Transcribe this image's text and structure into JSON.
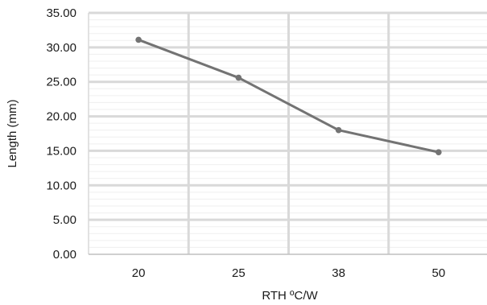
{
  "chart_data": {
    "type": "line",
    "categories": [
      "20",
      "25",
      "38",
      "50"
    ],
    "series": [
      {
        "values": [
          31.1,
          25.6,
          18.0,
          14.8
        ]
      }
    ],
    "xlabel": "RTH ºC/W",
    "ylabel": "Length (mm)",
    "ylim": [
      0,
      35
    ],
    "ytick_step": 5,
    "ytick_labels": [
      "0.00",
      "5.00",
      "10.00",
      "15.00",
      "20.00",
      "25.00",
      "30.00",
      "35.00"
    ],
    "grid": {
      "major": true,
      "minor": true,
      "vertical": true
    },
    "colors": {
      "line": "#737373",
      "marker": "#737373",
      "major_grid": "#d9d9d9",
      "minor_grid": "#efefef",
      "axis": "#bfbfbf"
    }
  }
}
